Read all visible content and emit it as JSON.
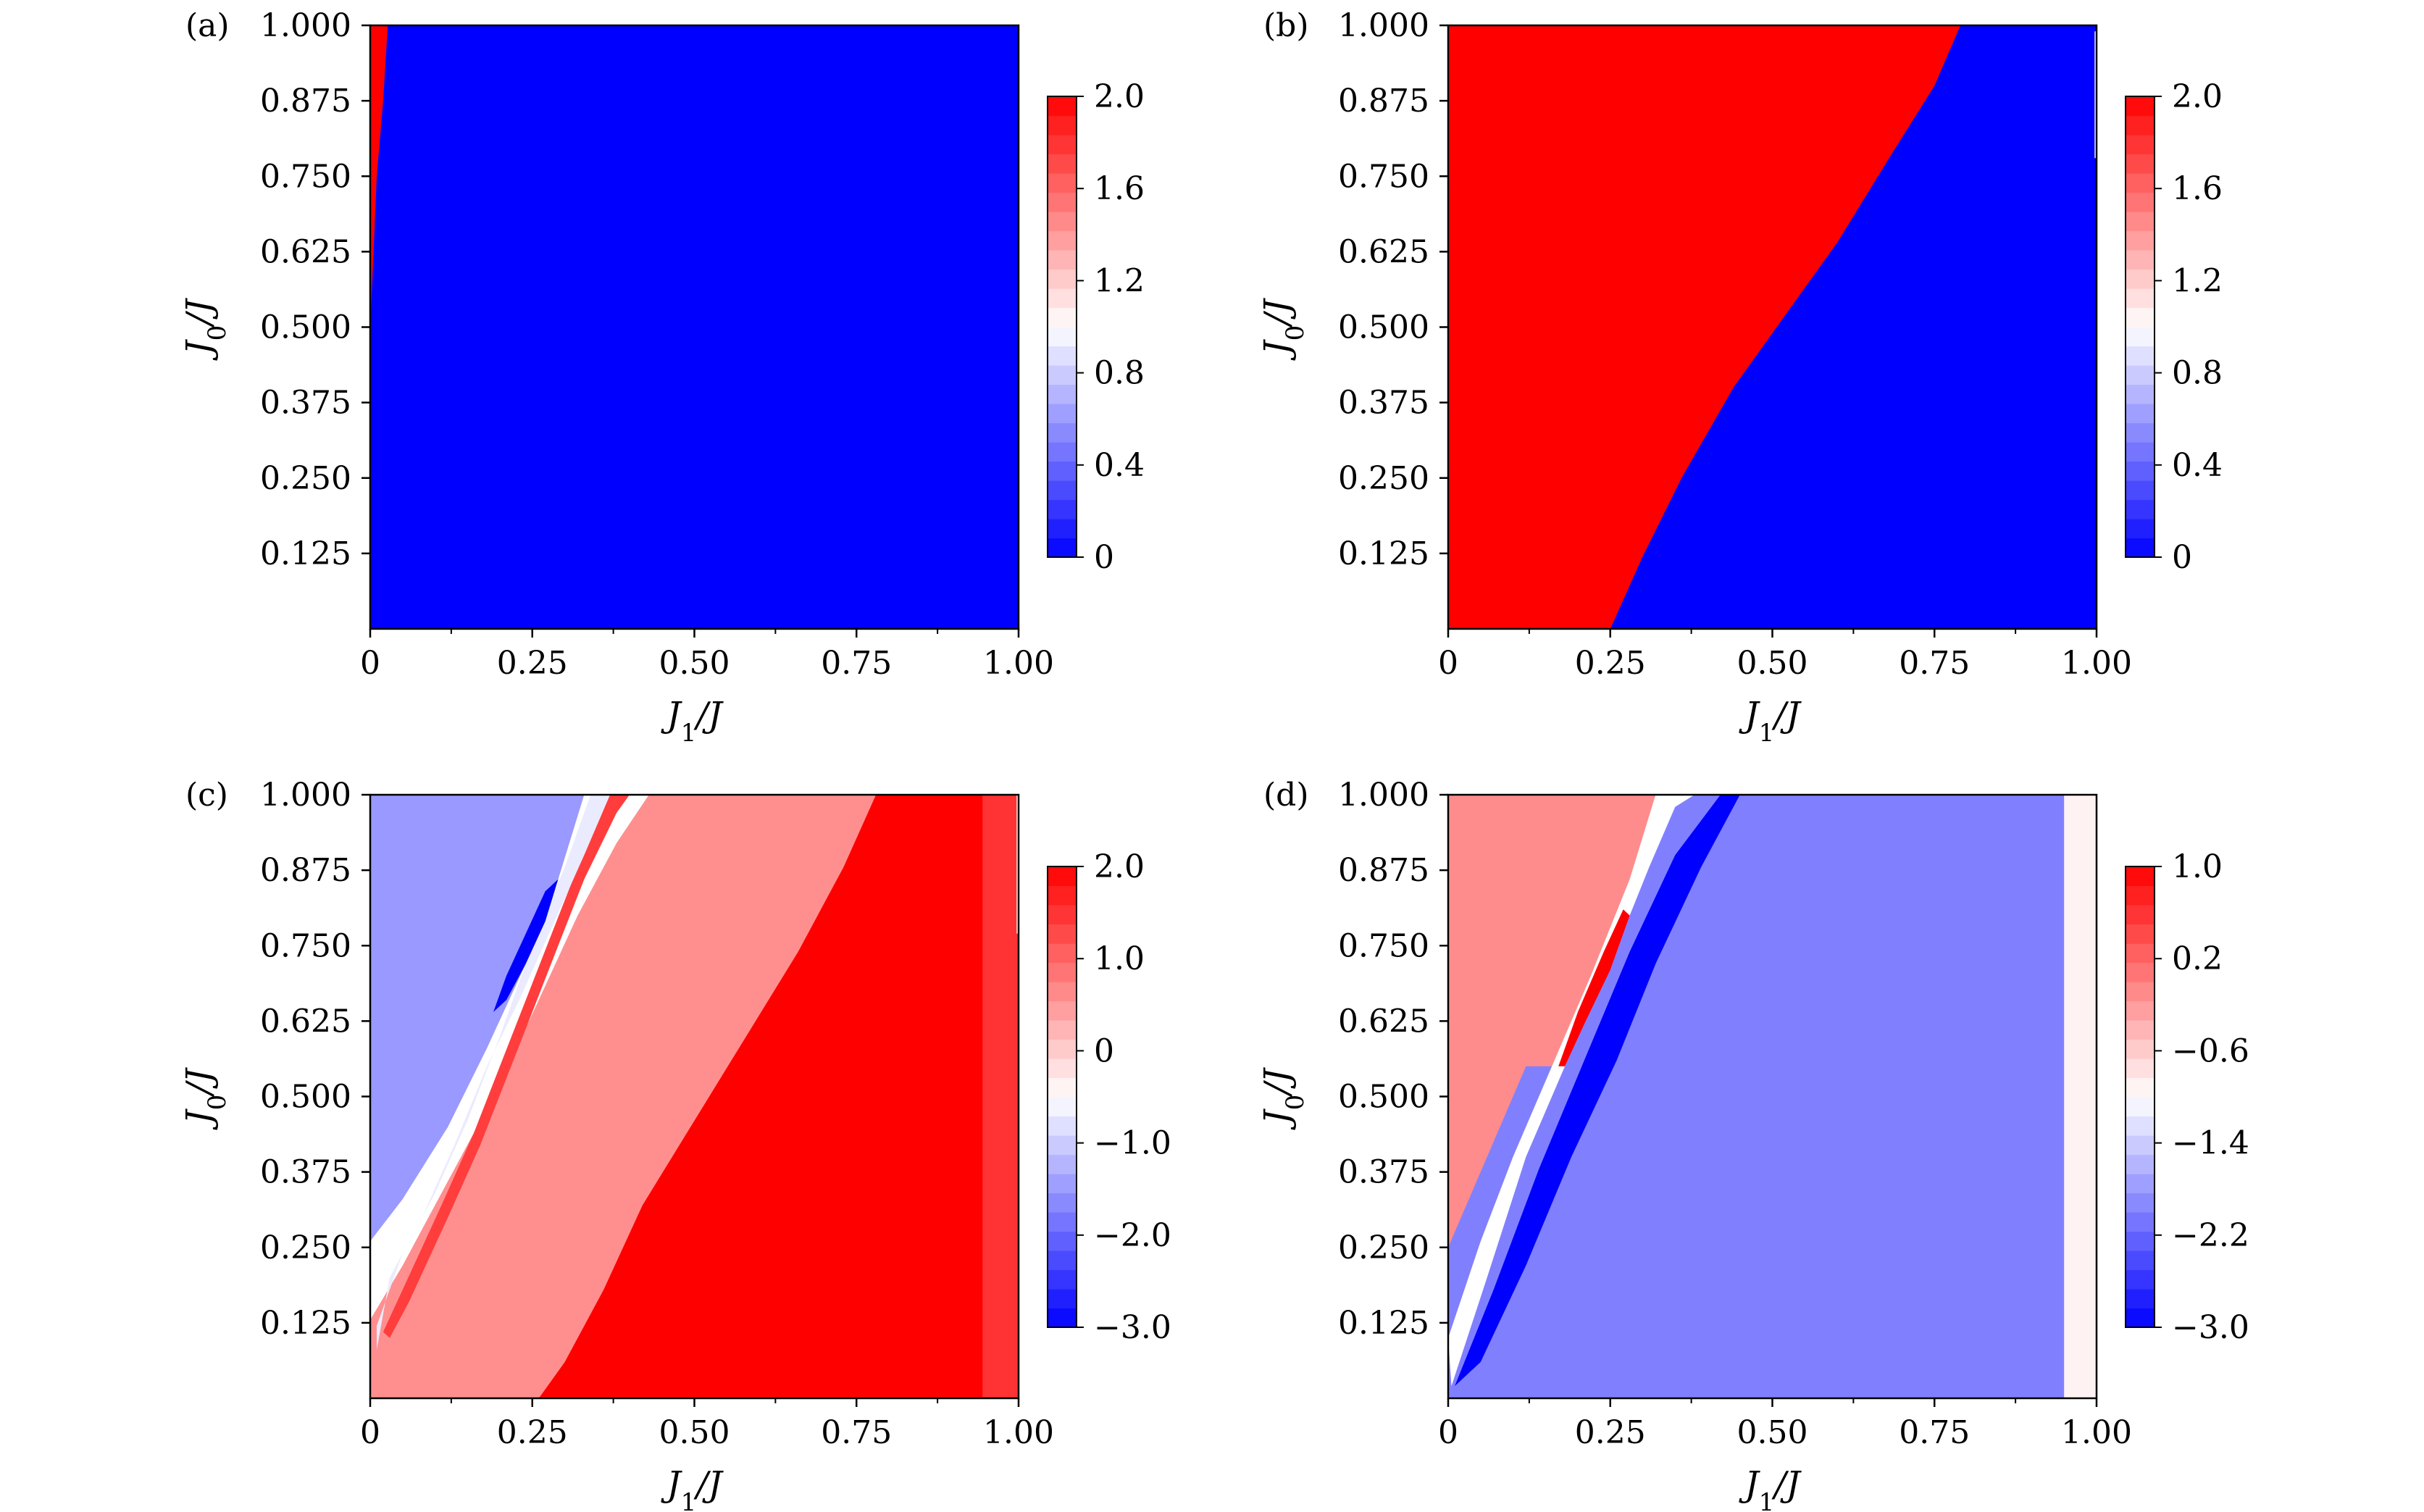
{
  "figure": {
    "description_free": true
  },
  "chart_data": [
    {
      "type": "heatmap",
      "panel_label": "(a)",
      "xlabel": "J1/J",
      "ylabel": "J0/J",
      "xlim": [
        0,
        1
      ],
      "ylim": [
        0,
        1
      ],
      "x_ticks": [
        0,
        0.25,
        0.5,
        0.75,
        1.0
      ],
      "x_tick_labels": [
        "0",
        "0.25",
        "0.50",
        "0.75",
        "1.00"
      ],
      "y_ticks": [
        0.125,
        0.25,
        0.375,
        0.5,
        0.625,
        0.75,
        0.875,
        1.0
      ],
      "y_tick_labels": [
        "0.125",
        "0.250",
        "0.375",
        "0.500",
        "0.625",
        "0.750",
        "0.875",
        "1.000"
      ],
      "colorbar": {
        "min": 0,
        "max": 2.0,
        "ticks": [
          0,
          0.4,
          0.8,
          1.2,
          1.6,
          2.0
        ],
        "tick_labels": [
          "0",
          "0.4",
          "0.8",
          "1.2",
          "1.6",
          "2.0"
        ]
      },
      "regions": [
        {
          "value": 0,
          "polygon": [
            [
              0,
              0
            ],
            [
              1,
              0
            ],
            [
              1,
              1
            ],
            [
              0,
              1
            ]
          ]
        },
        {
          "value": 2,
          "polygon": [
            [
              0,
              0.5
            ],
            [
              0.005,
              0.62
            ],
            [
              0.01,
              0.75
            ],
            [
              0.02,
              0.875
            ],
            [
              0.027,
              1.0
            ],
            [
              0,
              1.0
            ]
          ]
        }
      ]
    },
    {
      "type": "heatmap",
      "panel_label": "(b)",
      "xlabel": "J1/J",
      "ylabel": "J0/J",
      "xlim": [
        0,
        1
      ],
      "ylim": [
        0,
        1
      ],
      "x_ticks": [
        0,
        0.25,
        0.5,
        0.75,
        1.0
      ],
      "x_tick_labels": [
        "0",
        "0.25",
        "0.50",
        "0.75",
        "1.00"
      ],
      "y_ticks": [
        0.125,
        0.25,
        0.375,
        0.5,
        0.625,
        0.75,
        0.875,
        1.0
      ],
      "y_tick_labels": [
        "0.125",
        "0.250",
        "0.375",
        "0.500",
        "0.625",
        "0.750",
        "0.875",
        "1.000"
      ],
      "colorbar": {
        "min": 0,
        "max": 2.0,
        "ticks": [
          0,
          0.4,
          0.8,
          1.2,
          1.6,
          2.0
        ],
        "tick_labels": [
          "0",
          "0.4",
          "0.8",
          "1.2",
          "1.6",
          "2.0"
        ]
      },
      "regions": [
        {
          "value": 0,
          "polygon": [
            [
              0,
              0
            ],
            [
              1,
              0
            ],
            [
              1,
              1
            ],
            [
              0,
              1
            ]
          ]
        },
        {
          "value": 2,
          "polygon": [
            [
              0,
              0
            ],
            [
              0.25,
              0
            ],
            [
              0.3,
              0.12
            ],
            [
              0.36,
              0.25
            ],
            [
              0.44,
              0.4
            ],
            [
              0.52,
              0.52
            ],
            [
              0.6,
              0.64
            ],
            [
              0.68,
              0.78
            ],
            [
              0.75,
              0.9
            ],
            [
              0.79,
              1.0
            ],
            [
              0,
              1.0
            ],
            [
              0,
              0.6
            ],
            [
              0.015,
              0.6
            ],
            [
              0.015,
              0.81
            ],
            [
              0.025,
              0.81
            ],
            [
              0.025,
              1.0
            ],
            [
              0.035,
              1.0
            ],
            [
              0,
              1.0
            ]
          ]
        },
        {
          "value": 1,
          "polygon": [
            [
              0.997,
              0.78
            ],
            [
              1.0,
              0.78
            ],
            [
              1.0,
              0.99
            ],
            [
              0.997,
              0.99
            ]
          ]
        }
      ]
    },
    {
      "type": "heatmap",
      "panel_label": "(c)",
      "xlabel": "J1/J",
      "ylabel": "J0/J",
      "xlim": [
        0,
        1
      ],
      "ylim": [
        0,
        1
      ],
      "x_ticks": [
        0,
        0.25,
        0.5,
        0.75,
        1.0
      ],
      "x_tick_labels": [
        "0",
        "0.25",
        "0.50",
        "0.75",
        "1.00"
      ],
      "y_ticks": [
        0.125,
        0.25,
        0.375,
        0.5,
        0.625,
        0.75,
        0.875,
        1.0
      ],
      "y_tick_labels": [
        "0.125",
        "0.250",
        "0.375",
        "0.500",
        "0.625",
        "0.750",
        "0.875",
        "1.000"
      ],
      "colorbar": {
        "min": -3.0,
        "max": 2.0,
        "ticks": [
          -3.0,
          -2.0,
          -1.0,
          0,
          1.0,
          2.0
        ],
        "tick_labels": [
          "−3.0",
          "−2.0",
          "−1.0",
          "0",
          "1.0",
          "2.0"
        ]
      },
      "regions": [
        {
          "value": -1.5,
          "polygon": [
            [
              0,
              0.26
            ],
            [
              0.05,
              0.33
            ],
            [
              0.12,
              0.45
            ],
            [
              0.18,
              0.58
            ],
            [
              0.24,
              0.72
            ],
            [
              0.29,
              0.86
            ],
            [
              0.33,
              1.0
            ],
            [
              0,
              1.0
            ]
          ]
        },
        {
          "value": 0.6,
          "polygon": [
            [
              0,
              0
            ],
            [
              0.26,
              0
            ],
            [
              0.3,
              0.06
            ],
            [
              0.36,
              0.18
            ],
            [
              0.42,
              0.32
            ],
            [
              0.5,
              0.46
            ],
            [
              0.58,
              0.6
            ],
            [
              0.66,
              0.74
            ],
            [
              0.73,
              0.88
            ],
            [
              0.78,
              1.0
            ],
            [
              0.43,
              1.0
            ],
            [
              0.38,
              0.92
            ],
            [
              0.32,
              0.8
            ],
            [
              0.26,
              0.66
            ],
            [
              0.2,
              0.52
            ],
            [
              0.12,
              0.36
            ],
            [
              0.05,
              0.22
            ],
            [
              0,
              0.13
            ]
          ]
        },
        {
          "value": 2.0,
          "polygon": [
            [
              0.26,
              0
            ],
            [
              0.945,
              0
            ],
            [
              0.945,
              1.0
            ],
            [
              0.78,
              1.0
            ],
            [
              0.73,
              0.88
            ],
            [
              0.66,
              0.74
            ],
            [
              0.58,
              0.6
            ],
            [
              0.5,
              0.46
            ],
            [
              0.42,
              0.32
            ],
            [
              0.36,
              0.18
            ],
            [
              0.3,
              0.06
            ]
          ]
        },
        {
          "value": 1.5,
          "polygon": [
            [
              0.945,
              0
            ],
            [
              1.0,
              0
            ],
            [
              1.0,
              0.77
            ],
            [
              0.997,
              0.77
            ],
            [
              0.997,
              1.0
            ],
            [
              0.945,
              1.0
            ]
          ]
        },
        {
          "value": 1.4,
          "polygon": [
            [
              0.03,
              0.1
            ],
            [
              0.06,
              0.16
            ],
            [
              0.12,
              0.3
            ],
            [
              0.17,
              0.42
            ],
            [
              0.21,
              0.53
            ],
            [
              0.25,
              0.64
            ],
            [
              0.29,
              0.75
            ],
            [
              0.33,
              0.86
            ],
            [
              0.38,
              0.97
            ],
            [
              0.4,
              1.0
            ],
            [
              0.36,
              1.0
            ],
            [
              0.32,
              0.88
            ],
            [
              0.28,
              0.77
            ],
            [
              0.24,
              0.66
            ],
            [
              0.2,
              0.55
            ],
            [
              0.16,
              0.44
            ],
            [
              0.11,
              0.32
            ],
            [
              0.05,
              0.18
            ],
            [
              0.02,
              0.11
            ]
          ]
        },
        {
          "value": -0.7,
          "polygon": [
            [
              0.01,
              0.08
            ],
            [
              0.03,
              0.2
            ],
            [
              0.08,
              0.3
            ],
            [
              0.13,
              0.42
            ],
            [
              0.18,
              0.55
            ],
            [
              0.23,
              0.66
            ],
            [
              0.28,
              0.78
            ],
            [
              0.33,
              0.9
            ],
            [
              0.37,
              1.0
            ],
            [
              0.34,
              1.0
            ],
            [
              0.3,
              0.88
            ],
            [
              0.25,
              0.75
            ],
            [
              0.2,
              0.6
            ],
            [
              0.15,
              0.46
            ],
            [
              0.1,
              0.34
            ],
            [
              0.05,
              0.24
            ],
            [
              0.01,
              0.12
            ]
          ]
        },
        {
          "value": -3.0,
          "polygon": [
            [
              0.19,
              0.64
            ],
            [
              0.21,
              0.7
            ],
            [
              0.24,
              0.77
            ],
            [
              0.27,
              0.84
            ],
            [
              0.29,
              0.86
            ],
            [
              0.27,
              0.79
            ],
            [
              0.24,
              0.72
            ],
            [
              0.21,
              0.66
            ]
          ]
        }
      ]
    },
    {
      "type": "heatmap",
      "panel_label": "(d)",
      "xlabel": "J1/J",
      "ylabel": "J0/J",
      "xlim": [
        0,
        1
      ],
      "ylim": [
        0,
        1
      ],
      "x_ticks": [
        0,
        0.25,
        0.5,
        0.75,
        1.0
      ],
      "x_tick_labels": [
        "0",
        "0.25",
        "0.50",
        "0.75",
        "1.00"
      ],
      "y_ticks": [
        0.125,
        0.25,
        0.375,
        0.5,
        0.625,
        0.75,
        0.875,
        1.0
      ],
      "y_tick_labels": [
        "0.125",
        "0.250",
        "0.375",
        "0.500",
        "0.625",
        "0.750",
        "0.875",
        "1.000"
      ],
      "colorbar": {
        "min": -3.0,
        "max": 1.0,
        "ticks": [
          -3.0,
          -2.2,
          -1.4,
          -0.6,
          0.2,
          1.0
        ],
        "tick_labels": [
          "−3.0",
          "−2.2",
          "−1.4",
          "−0.6",
          "0.2",
          "1.0"
        ]
      },
      "regions": [
        {
          "value": -2.0,
          "polygon": [
            [
              0,
              0
            ],
            [
              0.95,
              0
            ],
            [
              0.95,
              1.0
            ],
            [
              0,
              1.0
            ]
          ]
        },
        {
          "value": -0.9,
          "polygon": [
            [
              0.95,
              0
            ],
            [
              1.0,
              0
            ],
            [
              1.0,
              1.0
            ],
            [
              0.95,
              1.0
            ]
          ]
        },
        {
          "value": -0.1,
          "polygon": [
            [
              0,
              0.25
            ],
            [
              0.06,
              0.4
            ],
            [
              0.12,
              0.55
            ],
            [
              0.18,
              0.55
            ],
            [
              0.22,
              0.7
            ],
            [
              0.28,
              0.84
            ],
            [
              0.32,
              1.0
            ],
            [
              0,
              1.0
            ]
          ]
        },
        {
          "value": -1.0,
          "polygon": [
            [
              0.005,
              0.02
            ],
            [
              0.06,
              0.2
            ],
            [
              0.12,
              0.4
            ],
            [
              0.18,
              0.55
            ],
            [
              0.25,
              0.72
            ],
            [
              0.31,
              0.88
            ],
            [
              0.35,
              0.98
            ],
            [
              0.38,
              1.0
            ],
            [
              0.32,
              1.0
            ],
            [
              0.28,
              0.86
            ],
            [
              0.22,
              0.7
            ],
            [
              0.16,
              0.55
            ],
            [
              0.1,
              0.4
            ],
            [
              0.05,
              0.26
            ],
            [
              0,
              0.1
            ]
          ]
        },
        {
          "value": -3.0,
          "polygon": [
            [
              0.01,
              0.02
            ],
            [
              0.07,
              0.18
            ],
            [
              0.14,
              0.38
            ],
            [
              0.21,
              0.56
            ],
            [
              0.28,
              0.74
            ],
            [
              0.35,
              0.9
            ],
            [
              0.42,
              1.0
            ],
            [
              0.45,
              1.0
            ],
            [
              0.39,
              0.88
            ],
            [
              0.32,
              0.72
            ],
            [
              0.26,
              0.56
            ],
            [
              0.19,
              0.4
            ],
            [
              0.12,
              0.22
            ],
            [
              0.05,
              0.06
            ]
          ]
        },
        {
          "value": 1.0,
          "polygon": [
            [
              0.17,
              0.55
            ],
            [
              0.2,
              0.64
            ],
            [
              0.24,
              0.74
            ],
            [
              0.27,
              0.81
            ],
            [
              0.28,
              0.8
            ],
            [
              0.25,
              0.71
            ],
            [
              0.21,
              0.62
            ],
            [
              0.18,
              0.55
            ]
          ]
        }
      ]
    }
  ]
}
